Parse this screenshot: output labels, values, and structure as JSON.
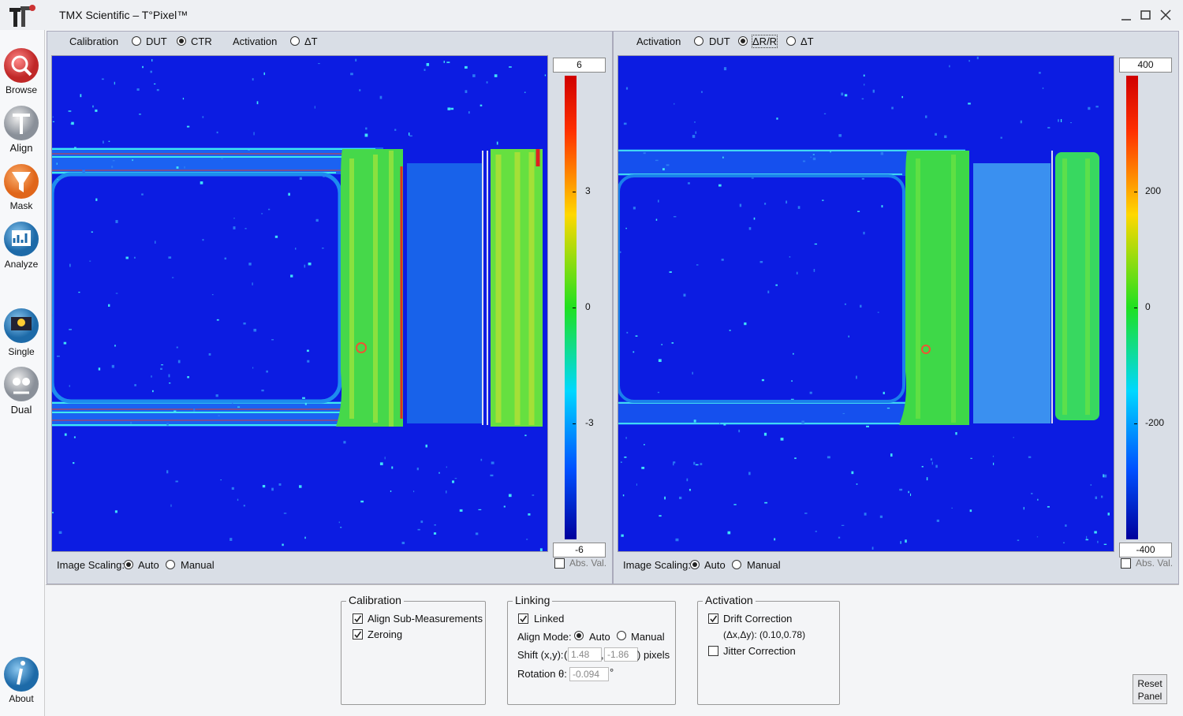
{
  "window": {
    "title": "TMX Scientific – T°Pixel™"
  },
  "sidebar": {
    "buttons": [
      "Browse",
      "Align",
      "Mask",
      "Analyze",
      "Single",
      "Dual",
      "About"
    ]
  },
  "left_panel": {
    "mode_label": "Calibration",
    "modes": [
      "DUT",
      "CTR"
    ],
    "activation_label": "Activation",
    "activation_modes": [
      "ΔT"
    ],
    "colorbar": {
      "max": 6,
      "ticks": [
        3,
        0,
        -3
      ],
      "min": -6
    },
    "scaling_label": "Image Scaling:",
    "scaling_options": [
      "Auto",
      "Manual"
    ],
    "abs_label": "Abs. Val."
  },
  "right_panel": {
    "activation_label": "Activation",
    "activation_modes": [
      "DUT",
      "ΔR/R",
      "ΔT"
    ],
    "colorbar": {
      "max": 400,
      "ticks": [
        200,
        0,
        -200
      ],
      "min": -400
    },
    "scaling_label": "Image Scaling:",
    "scaling_options": [
      "Auto",
      "Manual"
    ],
    "abs_label": "Abs. Val."
  },
  "settings": {
    "calibration": {
      "title": "Calibration",
      "options": [
        "Align Sub-Measurements",
        "Zeroing"
      ]
    },
    "linking": {
      "title": "Linking",
      "linked": "Linked",
      "align_mode_label": "Align Mode:",
      "align_modes": [
        "Auto",
        "Manual"
      ],
      "shift_label": "Shift (x,y):",
      "shift_open": "(",
      "shift": [
        1.48,
        -1.86
      ],
      "shift_sep": ",",
      "shift_unit": ") pixels",
      "rotation_label": "Rotation θ:",
      "rotation": -0.094,
      "rotation_unit": "°"
    },
    "activation": {
      "title": "Activation",
      "drift": "Drift Correction",
      "drift_value": "(Δx,Δy): (0.10,0.78)",
      "jitter": "Jitter Correction"
    },
    "reset_button": "Reset Panel"
  }
}
